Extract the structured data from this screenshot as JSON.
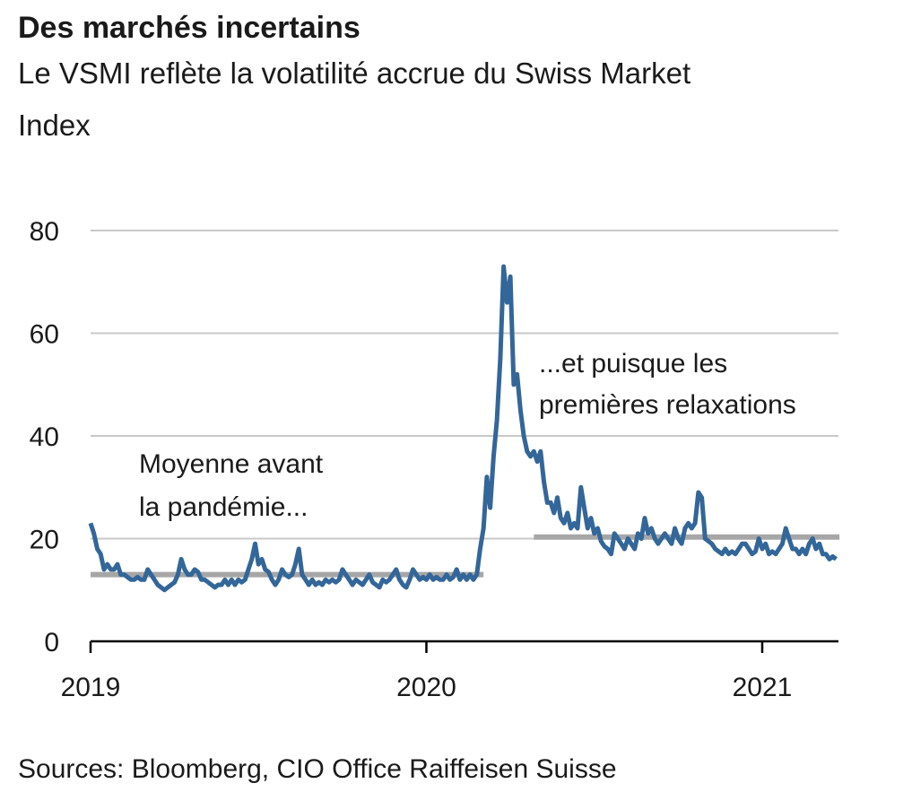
{
  "chart_data": {
    "type": "line",
    "title": "Des marchés incertains",
    "subtitle": [
      "Le VSMI reflète la volatilité accrue du Swiss Market",
      "Index"
    ],
    "source": "Sources: Bloomberg, CIO Office Raiffeisen Suisse",
    "color": "#336699",
    "x": [
      2019.0,
      2019.01,
      2019.02,
      2019.03,
      2019.04,
      2019.05,
      2019.06,
      2019.07,
      2019.08,
      2019.09,
      2019.1,
      2019.11,
      2019.12,
      2019.13,
      2019.14,
      2019.15,
      2019.16,
      2019.17,
      2019.18,
      2019.19,
      2019.2,
      2019.21,
      2019.22,
      2019.23,
      2019.24,
      2019.25,
      2019.26,
      2019.27,
      2019.28,
      2019.29,
      2019.3,
      2019.31,
      2019.32,
      2019.33,
      2019.34,
      2019.35,
      2019.36,
      2019.37,
      2019.38,
      2019.39,
      2019.4,
      2019.41,
      2019.42,
      2019.43,
      2019.44,
      2019.45,
      2019.46,
      2019.47,
      2019.48,
      2019.49,
      2019.5,
      2019.51,
      2019.52,
      2019.53,
      2019.54,
      2019.55,
      2019.56,
      2019.57,
      2019.58,
      2019.59,
      2019.6,
      2019.61,
      2019.62,
      2019.63,
      2019.64,
      2019.65,
      2019.66,
      2019.67,
      2019.68,
      2019.69,
      2019.7,
      2019.71,
      2019.72,
      2019.73,
      2019.74,
      2019.75,
      2019.76,
      2019.77,
      2019.78,
      2019.79,
      2019.8,
      2019.81,
      2019.82,
      2019.83,
      2019.84,
      2019.85,
      2019.86,
      2019.87,
      2019.88,
      2019.89,
      2019.9,
      2019.91,
      2019.92,
      2019.93,
      2019.94,
      2019.95,
      2019.96,
      2019.97,
      2019.98,
      2019.99,
      2020.0,
      2020.01,
      2020.02,
      2020.03,
      2020.04,
      2020.05,
      2020.06,
      2020.07,
      2020.08,
      2020.09,
      2020.1,
      2020.11,
      2020.12,
      2020.13,
      2020.14,
      2020.15,
      2020.16,
      2020.17,
      2020.18,
      2020.19,
      2020.2,
      2020.21,
      2020.22,
      2020.23,
      2020.24,
      2020.25,
      2020.26,
      2020.27,
      2020.28,
      2020.29,
      2020.3,
      2020.31,
      2020.32,
      2020.33,
      2020.34,
      2020.35,
      2020.36,
      2020.37,
      2020.38,
      2020.39,
      2020.4,
      2020.41,
      2020.42,
      2020.43,
      2020.44,
      2020.45,
      2020.46,
      2020.47,
      2020.48,
      2020.49,
      2020.5,
      2020.51,
      2020.52,
      2020.53,
      2020.54,
      2020.55,
      2020.56,
      2020.57,
      2020.58,
      2020.59,
      2020.6,
      2020.61,
      2020.62,
      2020.63,
      2020.64,
      2020.65,
      2020.66,
      2020.67,
      2020.68,
      2020.69,
      2020.7,
      2020.71,
      2020.72,
      2020.73,
      2020.74,
      2020.75,
      2020.76,
      2020.77,
      2020.78,
      2020.79,
      2020.8,
      2020.81,
      2020.82,
      2020.83,
      2020.84,
      2020.85,
      2020.86,
      2020.87,
      2020.88,
      2020.89,
      2020.9,
      2020.91,
      2020.92,
      2020.93,
      2020.94,
      2020.95,
      2020.96,
      2020.97,
      2020.98,
      2020.99,
      2021.0,
      2021.01,
      2021.02,
      2021.03,
      2021.04,
      2021.05,
      2021.06,
      2021.07,
      2021.08,
      2021.09,
      2021.1,
      2021.11,
      2021.12,
      2021.13,
      2021.14,
      2021.15,
      2021.16,
      2021.17,
      2021.18,
      2021.19,
      2021.2,
      2021.21,
      2021.22
    ],
    "values": [
      23,
      21,
      18,
      17,
      14,
      15,
      14,
      14,
      15,
      13,
      13,
      12.5,
      12,
      12,
      12.5,
      12,
      12,
      14,
      13,
      12,
      11,
      10.5,
      10,
      10.5,
      11,
      11.5,
      13,
      16,
      14,
      13,
      13,
      14,
      13.5,
      12,
      12,
      11.5,
      11,
      10.5,
      11,
      11,
      12,
      11,
      12,
      11,
      12,
      11.5,
      12,
      14,
      16,
      19,
      15,
      16,
      14,
      13.5,
      12,
      11,
      12,
      14,
      13,
      12.5,
      13,
      15,
      18,
      13,
      12,
      11,
      12,
      11,
      11.5,
      11,
      12,
      11.5,
      12,
      11.5,
      12,
      14,
      13,
      12,
      11,
      12,
      11.5,
      11,
      12,
      13,
      11.5,
      11,
      10.5,
      12,
      11.5,
      12,
      13,
      14,
      12,
      11,
      10.5,
      12,
      14,
      13,
      12,
      12.5,
      12,
      13,
      12,
      12.5,
      12,
      12,
      13,
      12,
      12.5,
      14,
      12,
      13,
      12,
      13,
      12,
      13,
      18,
      22,
      32,
      26,
      36,
      43,
      55,
      73,
      66,
      71,
      50,
      52,
      45,
      40,
      37,
      36,
      37,
      35,
      37,
      31,
      27,
      27,
      25,
      28,
      24,
      23,
      25,
      22,
      23,
      22,
      30,
      26,
      22,
      24,
      21,
      22,
      19.5,
      18.5,
      18,
      17,
      21,
      20,
      19,
      18,
      20,
      19,
      18,
      21,
      20,
      24,
      21,
      22,
      20,
      19,
      20,
      21,
      20,
      19,
      22,
      20,
      19,
      22,
      23,
      22,
      23,
      29,
      28,
      20,
      19.5,
      19,
      18,
      17.5,
      17,
      18,
      17,
      17.5,
      17,
      18,
      19,
      19,
      18,
      17,
      17.5,
      20,
      18,
      19,
      17,
      17.5,
      17,
      18,
      19,
      22,
      20,
      18,
      18,
      17,
      18,
      17,
      19,
      20,
      18,
      19,
      17,
      17,
      16,
      16.5,
      16
    ],
    "reference_lines": [
      {
        "value": 13,
        "x": [
          2019,
          2020.17
        ],
        "color": "#a6a6a6"
      },
      {
        "value": 20.3,
        "x": [
          2020.32,
          2021.23
        ],
        "color": "#a6a6a6"
      }
    ],
    "annotations": [
      [
        "Moyenne avant",
        "la pandémie..."
      ],
      [
        "...et puisque les",
        "premières relaxations"
      ]
    ],
    "xlim": [
      2019,
      2021.227
    ],
    "xticks": [
      2019,
      2020,
      2021
    ],
    "ylim": [
      0,
      80
    ],
    "yticks": [
      0,
      20,
      40,
      60,
      80
    ],
    "grid": true
  }
}
